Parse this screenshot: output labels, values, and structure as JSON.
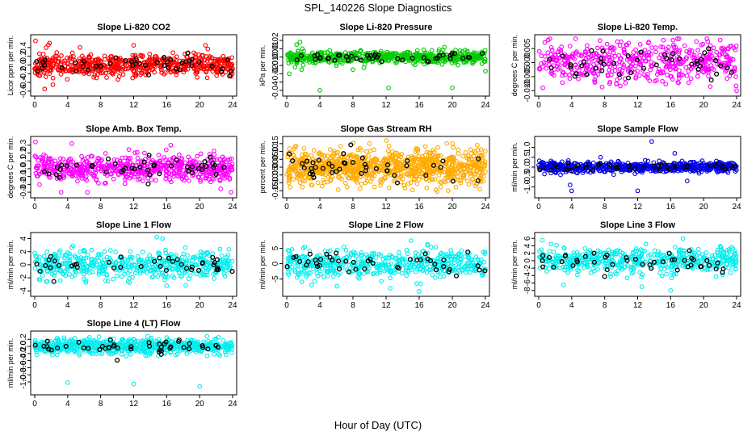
{
  "figure": {
    "title": "SPL_140226  Slope Diagnostics",
    "xlabel": "Hour of Day (UTC)"
  },
  "chart_data": [
    {
      "type": "scatter",
      "title": "Slope Li-820 CO2",
      "ylabel": "Licor ppm per min.",
      "xlim": [
        0,
        24
      ],
      "ylim": [
        -0.62,
        0.6
      ],
      "xticks": [
        0,
        4,
        8,
        12,
        16,
        20,
        24
      ],
      "yticks": [
        -0.6,
        -0.4,
        -0.2,
        0.0,
        0.2,
        0.4
      ],
      "ytick_labels": [
        "-0.6",
        "-0.4",
        "-0.2",
        "0.0",
        "0.2",
        "0.4"
      ],
      "color": "#ff0000",
      "spread": 0.13,
      "background_count": 600,
      "points_count": 45,
      "seed": 11,
      "outliers": [
        [
          0.1,
          0.55
        ],
        [
          1.2,
          -0.55
        ],
        [
          2.2,
          -0.45
        ],
        [
          5.5,
          0.4
        ],
        [
          12,
          0.45
        ],
        [
          20.7,
          0.45
        ],
        [
          1.8,
          0.5
        ]
      ]
    },
    {
      "type": "scatter",
      "title": "Slope Li-820 Pressure",
      "ylabel": "kPa per min.",
      "xlim": [
        0,
        24
      ],
      "ylim": [
        -0.042,
        0.022
      ],
      "xticks": [
        0,
        4,
        8,
        12,
        16,
        20,
        24
      ],
      "yticks": [
        -0.04,
        -0.03,
        -0.02,
        -0.01,
        0.0,
        0.01,
        0.02
      ],
      "ytick_labels": [
        "-0.04",
        "",
        "-0.02",
        "-0.01",
        "0.00",
        "0.01",
        "0.02"
      ],
      "color": "#00cc00",
      "spread": 0.0035,
      "background_count": 600,
      "points_count": 45,
      "seed": 23,
      "outliers": [
        [
          1.2,
          0.015
        ],
        [
          1.6,
          0.018
        ],
        [
          1.0,
          -0.012
        ],
        [
          0.3,
          -0.02
        ],
        [
          4,
          -0.04
        ],
        [
          12.3,
          -0.037
        ],
        [
          20,
          -0.037
        ],
        [
          24,
          -0.017
        ],
        [
          8,
          -0.015
        ],
        [
          1.8,
          -0.015
        ]
      ]
    },
    {
      "type": "scatter",
      "title": "Slope Li-820 Temp.",
      "ylabel": "degrees C per min.",
      "xlim": [
        0,
        24
      ],
      "ylim": [
        -0.0105,
        0.0085
      ],
      "xticks": [
        0,
        4,
        8,
        12,
        16,
        20,
        24
      ],
      "yticks": [
        -0.01,
        -0.005,
        0.0,
        0.005
      ],
      "ytick_labels": [
        "-0.010",
        "-0.005",
        "0.000",
        "0.005"
      ],
      "color": "#ff00ff",
      "spread": 0.0035,
      "background_count": 500,
      "points_count": 45,
      "seed": 37,
      "outliers": [
        [
          0.5,
          -0.009
        ],
        [
          22,
          0.008
        ],
        [
          20.5,
          0.0075
        ],
        [
          24,
          -0.01
        ]
      ]
    },
    {
      "type": "scatter",
      "title": "Slope Amb. Box Temp.",
      "ylabel": "degrees C per min.",
      "xlim": [
        0,
        24
      ],
      "ylim": [
        -0.32,
        0.36
      ],
      "xticks": [
        0,
        4,
        8,
        12,
        16,
        20,
        24
      ],
      "yticks": [
        -0.3,
        -0.2,
        -0.1,
        0.0,
        0.1,
        0.2,
        0.3
      ],
      "ytick_labels": [
        "-0.3",
        "-0.2",
        "-0.1",
        "0.0",
        "0.1",
        "0.2",
        "0.3"
      ],
      "color": "#ff00ff",
      "spread": 0.08,
      "background_count": 600,
      "points_count": 45,
      "seed": 41,
      "outliers": [
        [
          0.1,
          0.34
        ],
        [
          4.5,
          0.32
        ],
        [
          6.4,
          -0.3
        ],
        [
          3.2,
          -0.3
        ],
        [
          16.5,
          0.3
        ],
        [
          23.8,
          -0.3
        ]
      ]
    },
    {
      "type": "scatter",
      "title": "Slope Gas Stream RH",
      "ylabel": "percent per min.",
      "xlim": [
        0,
        24
      ],
      "ylim": [
        -0.17,
        0.17
      ],
      "xticks": [
        0,
        4,
        8,
        12,
        16,
        20,
        24
      ],
      "yticks": [
        -0.15,
        -0.1,
        -0.05,
        0.0,
        0.05,
        0.1,
        0.15
      ],
      "ytick_labels": [
        "-0.15",
        "-0.10",
        "-0.05",
        "0.00",
        "0.05",
        "0.10",
        "0.15"
      ],
      "color": "#ffaa00",
      "spread": 0.055,
      "background_count": 900,
      "points_count": 45,
      "seed": 53,
      "outliers": [
        [
          1,
          0.13
        ],
        [
          10,
          0.15
        ],
        [
          19.5,
          -0.15
        ],
        [
          23,
          0.14
        ]
      ]
    },
    {
      "type": "scatter",
      "title": "Slope Sample Flow",
      "ylabel": "ml/min per min.",
      "xlim": [
        0,
        24
      ],
      "ylim": [
        -1.35,
        1.35
      ],
      "xticks": [
        0,
        4,
        8,
        12,
        16,
        20,
        24
      ],
      "yticks": [
        -1.0,
        -0.5,
        0.0,
        0.5,
        1.0
      ],
      "ytick_labels": [
        "-1.0",
        "-0.5",
        "0.0",
        "0.5",
        "1.0"
      ],
      "color": "#0000ee",
      "spread": 0.12,
      "background_count": 600,
      "points_count": 45,
      "seed": 67,
      "outliers": [
        [
          4,
          -1.2
        ],
        [
          12,
          -1.2
        ],
        [
          13.7,
          1.3
        ],
        [
          16.5,
          0.7
        ],
        [
          7.5,
          0.5
        ],
        [
          18,
          -0.7
        ],
        [
          3.8,
          -0.9
        ]
      ]
    },
    {
      "type": "scatter",
      "title": "Slope Line 1 Flow",
      "ylabel": "ml/min per min.",
      "xlim": [
        0,
        24
      ],
      "ylim": [
        -4.2,
        4.3
      ],
      "xticks": [
        0,
        4,
        8,
        12,
        16,
        20,
        24
      ],
      "yticks": [
        -4,
        -2,
        0,
        2,
        4
      ],
      "ytick_labels": [
        "-4",
        "-2",
        "0",
        "2",
        "4"
      ],
      "color": "#00eeee",
      "spread": 1.0,
      "background_count": 500,
      "points_count": 40,
      "seed": 71,
      "outliers": [
        [
          11.5,
          -2.7
        ],
        [
          14.8,
          4.2
        ],
        [
          15.5,
          4.0
        ],
        [
          16,
          -3.2
        ]
      ]
    },
    {
      "type": "scatter",
      "title": "Slope Line 2 Flow",
      "ylabel": "ml/min per min.",
      "xlim": [
        0,
        24
      ],
      "ylim": [
        -9.3,
        8.8
      ],
      "xticks": [
        0,
        4,
        8,
        12,
        16,
        20,
        24
      ],
      "yticks": [
        -5,
        0,
        5
      ],
      "ytick_labels": [
        "-5",
        "0",
        "5"
      ],
      "color": "#00eeee",
      "spread": 2.2,
      "background_count": 500,
      "points_count": 45,
      "seed": 83,
      "outliers": [
        [
          2,
          5
        ],
        [
          3,
          -7
        ],
        [
          12.5,
          -8
        ],
        [
          15,
          7.5
        ],
        [
          16,
          -9
        ],
        [
          17,
          6
        ]
      ]
    },
    {
      "type": "scatter",
      "title": "Slope Line 3 Flow",
      "ylabel": "ml/min per min.",
      "xlim": [
        0,
        24
      ],
      "ylim": [
        -8.5,
        6.5
      ],
      "xticks": [
        0,
        4,
        8,
        12,
        16,
        20,
        24
      ],
      "yticks": [
        -8,
        -6,
        -4,
        -2,
        0,
        2,
        4,
        6
      ],
      "ytick_labels": [
        "-8",
        "-6",
        "-4",
        "-2",
        "0",
        "2",
        "4",
        "6"
      ],
      "color": "#00eeee",
      "spread": 1.8,
      "background_count": 500,
      "points_count": 45,
      "seed": 97,
      "outliers": [
        [
          1.5,
          4.5
        ],
        [
          3,
          -6.5
        ],
        [
          12.5,
          -7
        ],
        [
          13,
          4.5
        ],
        [
          16,
          -8
        ],
        [
          17.5,
          6
        ]
      ]
    },
    {
      "type": "scatter",
      "title": "Slope Line 4 (LT) Flow",
      "ylabel": "ml/min per min.",
      "xlim": [
        0,
        24
      ],
      "ylim": [
        -1.25,
        0.32
      ],
      "xticks": [
        0,
        4,
        8,
        12,
        16,
        20,
        24
      ],
      "yticks": [
        -1.0,
        -0.8,
        -0.6,
        -0.4,
        -0.2,
        0.0,
        0.2
      ],
      "ytick_labels": [
        "-1.0",
        "-0.8",
        "-0.6",
        "-0.4",
        "-0.2",
        "0.0",
        "0.2"
      ],
      "color": "#00eeee",
      "spread": 0.1,
      "background_count": 700,
      "points_count": 45,
      "seed": 101,
      "outliers": [
        [
          4,
          -1.02
        ],
        [
          12,
          -1.06
        ],
        [
          20,
          -1.13
        ],
        [
          16,
          0.25
        ]
      ]
    }
  ]
}
